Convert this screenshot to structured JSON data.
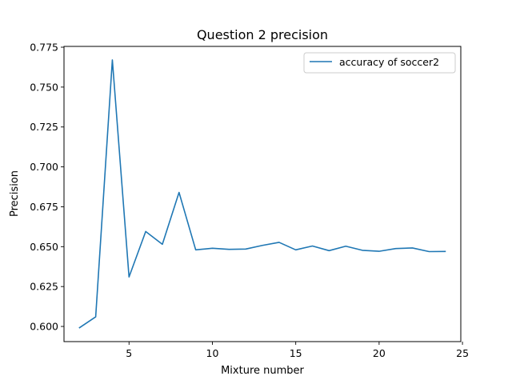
{
  "chart_data": {
    "type": "line",
    "title": "Question 2  precision",
    "xlabel": "Mixture number",
    "ylabel": "Precision",
    "xlim": [
      1.1,
      24.9
    ],
    "ylim": [
      0.5905,
      0.7755
    ],
    "xticks": [
      5,
      10,
      15,
      20,
      25
    ],
    "xtick_labels": [
      "5",
      "10",
      "15",
      "20",
      "25"
    ],
    "yticks": [
      0.6,
      0.625,
      0.65,
      0.675,
      0.7,
      0.725,
      0.75,
      0.775
    ],
    "ytick_labels": [
      "0.600",
      "0.625",
      "0.650",
      "0.675",
      "0.700",
      "0.725",
      "0.750",
      "0.775"
    ],
    "grid": false,
    "legend_position": "upper right",
    "series": [
      {
        "name": "accuracy of soccer2",
        "color": "#1f77b4",
        "x": [
          2,
          3,
          4,
          5,
          6,
          7,
          8,
          9,
          10,
          11,
          12,
          13,
          14,
          15,
          16,
          17,
          18,
          19,
          20,
          21,
          22,
          23,
          24
        ],
        "y": [
          0.599,
          0.606,
          0.767,
          0.631,
          0.6595,
          0.6515,
          0.684,
          0.648,
          0.649,
          0.6483,
          0.6485,
          0.6508,
          0.6527,
          0.648,
          0.6504,
          0.6475,
          0.6503,
          0.6477,
          0.6471,
          0.6488,
          0.6492,
          0.6469,
          0.647
        ]
      }
    ]
  }
}
